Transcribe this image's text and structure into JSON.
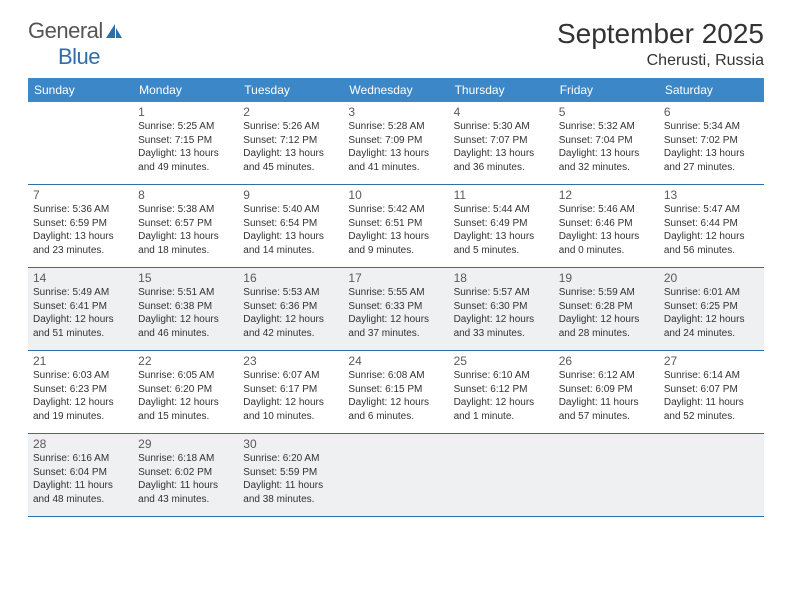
{
  "brand": {
    "part1": "General",
    "part2": "Blue"
  },
  "title": "September 2025",
  "location": "Cherusti, Russia",
  "colors": {
    "header_bg": "#3b87c8",
    "rule": "#2f6ea8",
    "shade": "#eef0f2",
    "text": "#333333"
  },
  "dayNames": [
    "Sunday",
    "Monday",
    "Tuesday",
    "Wednesday",
    "Thursday",
    "Friday",
    "Saturday"
  ],
  "weeks": [
    [
      {
        "n": "",
        "sunrise": "",
        "sunset": "",
        "daylight": ""
      },
      {
        "n": "1",
        "sunrise": "5:25 AM",
        "sunset": "7:15 PM",
        "daylight": "13 hours and 49 minutes."
      },
      {
        "n": "2",
        "sunrise": "5:26 AM",
        "sunset": "7:12 PM",
        "daylight": "13 hours and 45 minutes."
      },
      {
        "n": "3",
        "sunrise": "5:28 AM",
        "sunset": "7:09 PM",
        "daylight": "13 hours and 41 minutes."
      },
      {
        "n": "4",
        "sunrise": "5:30 AM",
        "sunset": "7:07 PM",
        "daylight": "13 hours and 36 minutes."
      },
      {
        "n": "5",
        "sunrise": "5:32 AM",
        "sunset": "7:04 PM",
        "daylight": "13 hours and 32 minutes."
      },
      {
        "n": "6",
        "sunrise": "5:34 AM",
        "sunset": "7:02 PM",
        "daylight": "13 hours and 27 minutes."
      }
    ],
    [
      {
        "n": "7",
        "sunrise": "5:36 AM",
        "sunset": "6:59 PM",
        "daylight": "13 hours and 23 minutes."
      },
      {
        "n": "8",
        "sunrise": "5:38 AM",
        "sunset": "6:57 PM",
        "daylight": "13 hours and 18 minutes."
      },
      {
        "n": "9",
        "sunrise": "5:40 AM",
        "sunset": "6:54 PM",
        "daylight": "13 hours and 14 minutes."
      },
      {
        "n": "10",
        "sunrise": "5:42 AM",
        "sunset": "6:51 PM",
        "daylight": "13 hours and 9 minutes."
      },
      {
        "n": "11",
        "sunrise": "5:44 AM",
        "sunset": "6:49 PM",
        "daylight": "13 hours and 5 minutes."
      },
      {
        "n": "12",
        "sunrise": "5:46 AM",
        "sunset": "6:46 PM",
        "daylight": "13 hours and 0 minutes."
      },
      {
        "n": "13",
        "sunrise": "5:47 AM",
        "sunset": "6:44 PM",
        "daylight": "12 hours and 56 minutes."
      }
    ],
    [
      {
        "n": "14",
        "sunrise": "5:49 AM",
        "sunset": "6:41 PM",
        "daylight": "12 hours and 51 minutes."
      },
      {
        "n": "15",
        "sunrise": "5:51 AM",
        "sunset": "6:38 PM",
        "daylight": "12 hours and 46 minutes."
      },
      {
        "n": "16",
        "sunrise": "5:53 AM",
        "sunset": "6:36 PM",
        "daylight": "12 hours and 42 minutes."
      },
      {
        "n": "17",
        "sunrise": "5:55 AM",
        "sunset": "6:33 PM",
        "daylight": "12 hours and 37 minutes."
      },
      {
        "n": "18",
        "sunrise": "5:57 AM",
        "sunset": "6:30 PM",
        "daylight": "12 hours and 33 minutes."
      },
      {
        "n": "19",
        "sunrise": "5:59 AM",
        "sunset": "6:28 PM",
        "daylight": "12 hours and 28 minutes."
      },
      {
        "n": "20",
        "sunrise": "6:01 AM",
        "sunset": "6:25 PM",
        "daylight": "12 hours and 24 minutes."
      }
    ],
    [
      {
        "n": "21",
        "sunrise": "6:03 AM",
        "sunset": "6:23 PM",
        "daylight": "12 hours and 19 minutes."
      },
      {
        "n": "22",
        "sunrise": "6:05 AM",
        "sunset": "6:20 PM",
        "daylight": "12 hours and 15 minutes."
      },
      {
        "n": "23",
        "sunrise": "6:07 AM",
        "sunset": "6:17 PM",
        "daylight": "12 hours and 10 minutes."
      },
      {
        "n": "24",
        "sunrise": "6:08 AM",
        "sunset": "6:15 PM",
        "daylight": "12 hours and 6 minutes."
      },
      {
        "n": "25",
        "sunrise": "6:10 AM",
        "sunset": "6:12 PM",
        "daylight": "12 hours and 1 minute."
      },
      {
        "n": "26",
        "sunrise": "6:12 AM",
        "sunset": "6:09 PM",
        "daylight": "11 hours and 57 minutes."
      },
      {
        "n": "27",
        "sunrise": "6:14 AM",
        "sunset": "6:07 PM",
        "daylight": "11 hours and 52 minutes."
      }
    ],
    [
      {
        "n": "28",
        "sunrise": "6:16 AM",
        "sunset": "6:04 PM",
        "daylight": "11 hours and 48 minutes."
      },
      {
        "n": "29",
        "sunrise": "6:18 AM",
        "sunset": "6:02 PM",
        "daylight": "11 hours and 43 minutes."
      },
      {
        "n": "30",
        "sunrise": "6:20 AM",
        "sunset": "5:59 PM",
        "daylight": "11 hours and 38 minutes."
      },
      {
        "n": "",
        "sunrise": "",
        "sunset": "",
        "daylight": ""
      },
      {
        "n": "",
        "sunrise": "",
        "sunset": "",
        "daylight": ""
      },
      {
        "n": "",
        "sunrise": "",
        "sunset": "",
        "daylight": ""
      },
      {
        "n": "",
        "sunrise": "",
        "sunset": "",
        "daylight": ""
      }
    ]
  ],
  "labels": {
    "sunrise": "Sunrise:",
    "sunset": "Sunset:",
    "daylight": "Daylight:"
  },
  "shadedWeeks": [
    2,
    4
  ]
}
